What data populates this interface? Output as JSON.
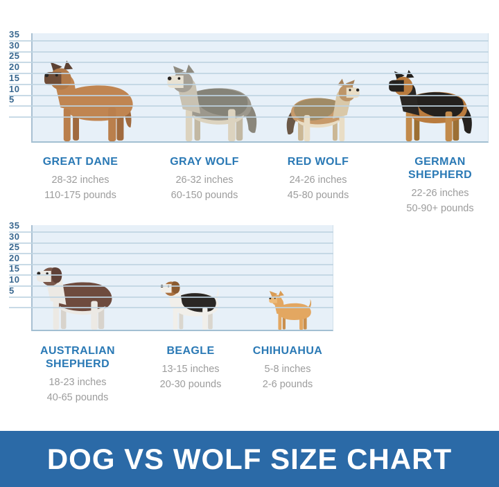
{
  "banner": {
    "text": "DOG VS WOLF SIZE CHART",
    "bg_color": "#2b6aa7",
    "text_color": "#ffffff"
  },
  "axis": {
    "tick_labels": [
      "35",
      "30",
      "25",
      "20",
      "15",
      "10",
      "5"
    ],
    "label_color": "#38678f"
  },
  "colors": {
    "chart_bg": "#e7f0f8",
    "grid_line": "#bed3e2",
    "axis_line": "#a9c0d2",
    "breed_name": "#2a79b5",
    "stats_text": "#9c9c9c"
  },
  "chart_data": [
    {
      "type": "pictorial",
      "row": "top",
      "y_ticks": [
        35,
        30,
        25,
        20,
        15,
        10,
        5
      ],
      "animals": [
        {
          "name": "GREAT DANE",
          "height": "28-32 inches",
          "weight": "110-175 pounds",
          "height_range_in": [
            28,
            32
          ],
          "weight_range_lb": [
            110,
            175
          ],
          "facing": "left",
          "ears": "pointy",
          "tail": "thin-down",
          "colors": {
            "coat": "#C08551",
            "legs": "#BA7F4C",
            "legsFar": "#A06A3E",
            "head": "#B27A49",
            "neck": "#C08551",
            "muzzle": "#6F4D38",
            "ears": "#5D4233",
            "tail": "#A06A3E"
          }
        },
        {
          "name": "GRAY WOLF",
          "height": "26-32 inches",
          "weight": "60-150 pounds",
          "height_range_in": [
            26,
            32
          ],
          "weight_range_lb": [
            60,
            150
          ],
          "facing": "left",
          "ears": "pointy",
          "tail": "bushy",
          "colors": {
            "coat": "#9C988D",
            "saddle": "#858378",
            "belly": "#DCD3BF",
            "legs": "#DCD3BF",
            "legsFar": "#C2B8A3",
            "head": "#A5A096",
            "neck": "#C9C2B2",
            "muzzle": "#E8E2D3",
            "ears": "#8F8B80",
            "tail": "#8A867B"
          }
        },
        {
          "name": "RED WOLF",
          "height": "24-26 inches",
          "weight": "45-80 pounds",
          "height_range_in": [
            24,
            26
          ],
          "weight_range_lb": [
            45,
            80
          ],
          "facing": "right",
          "ears": "pointy",
          "tail": "bushy",
          "colors": {
            "coat": "#C79A6B",
            "saddle": "#A08B66",
            "belly": "#E9DDC5",
            "legs": "#E9DDC5",
            "legsFar": "#CBB795",
            "head": "#BD9569",
            "neck": "#D9C8A8",
            "muzzle": "#E9DDC5",
            "ears": "#A8825A",
            "tail": "#6B5847"
          }
        },
        {
          "name": "GERMAN SHEPHERD",
          "height": "22-26 inches",
          "weight": "50-90+ pounds",
          "height_range_in": [
            22,
            26
          ],
          "weight_range_lb": [
            50,
            90
          ],
          "facing": "left",
          "ears": "pointy",
          "tail": "bushy",
          "colors": {
            "coat": "#B97B3E",
            "saddle": "#24211E",
            "legs": "#C28A4B",
            "legsFar": "#9C6F33",
            "head": "#B97B3E",
            "neck": "#2A2724",
            "muzzle": "#24211E",
            "ears": "#24211E",
            "tail": "#24211E"
          }
        }
      ]
    },
    {
      "type": "pictorial",
      "row": "bottom",
      "y_ticks": [
        35,
        30,
        25,
        20,
        15,
        10,
        5
      ],
      "animals": [
        {
          "name": "AUSTRALIAN SHEPHERD",
          "height": "18-23 inches",
          "weight": "40-65 pounds",
          "height_range_in": [
            18,
            23
          ],
          "weight_range_lb": [
            40,
            65
          ],
          "facing": "left",
          "ears": "floppy",
          "tail": "none",
          "colors": {
            "coat": "#6E4B3E",
            "belly": "#ECE9E4",
            "legs": "#ECE9E4",
            "legsFar": "#D8D3CC",
            "head": "#7B584A",
            "neck": "#ECE9E4",
            "muzzle": "#ECE9E4",
            "ears": "#5F4036"
          }
        },
        {
          "name": "BEAGLE",
          "height": "13-15 inches",
          "weight": "20-30 pounds",
          "height_range_in": [
            13,
            15
          ],
          "weight_range_lb": [
            20,
            30
          ],
          "facing": "left",
          "ears": "floppy",
          "tail": "thin-up",
          "colors": {
            "coat": "#F1EFEA",
            "saddle": "#2A2724",
            "legs": "#F1EFEA",
            "legsFar": "#DAD6CE",
            "head": "#AA703E",
            "neck": "#F1EFEA",
            "muzzle": "#F1EFEA",
            "ears": "#8A5A30",
            "tail": "#F1EFEA"
          }
        },
        {
          "name": "CHIHUAHUA",
          "height": "5-8 inches",
          "weight": "2-6 pounds",
          "height_range_in": [
            5,
            8
          ],
          "weight_range_lb": [
            2,
            6
          ],
          "facing": "left",
          "ears": "big-pointy",
          "tail": "thin-up",
          "colors": {
            "coat": "#E3A761",
            "legs": "#E3A761",
            "legsFar": "#C98F4E",
            "head": "#E3A761",
            "neck": "#E3A761",
            "muzzle": "#EDBB7A",
            "ears": "#D99C55",
            "tail": "#D99C55"
          }
        }
      ]
    }
  ]
}
